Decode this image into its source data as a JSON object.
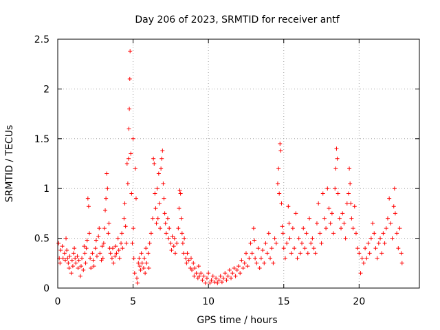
{
  "chart_data": {
    "type": "scatter",
    "title": "Day 206 of 2023, SRMTID for receiver antf",
    "xlabel": "GPS time / hours",
    "ylabel": "SRMTID / TECUs",
    "xlim": [
      0,
      24
    ],
    "ylim": [
      0,
      2.5
    ],
    "xticks": [
      0,
      5,
      10,
      15,
      20
    ],
    "yticks": [
      0,
      0.5,
      1,
      1.5,
      2,
      2.5
    ],
    "xtick_labels": [
      "0",
      "5",
      "10",
      "15",
      "20"
    ],
    "ytick_labels": [
      "0",
      "0.5",
      "1",
      "1.5",
      "2",
      "2.5"
    ],
    "grid": true,
    "marker": "plus",
    "series": [
      {
        "name": "SRMTID",
        "color": "#ff0000",
        "points": [
          [
            0.05,
            0.45
          ],
          [
            0.1,
            0.3
          ],
          [
            0.15,
            0.25
          ],
          [
            0.2,
            0.38
          ],
          [
            0.3,
            0.42
          ],
          [
            0.35,
            0.3
          ],
          [
            0.45,
            0.35
          ],
          [
            0.5,
            0.28
          ],
          [
            0.55,
            0.5
          ],
          [
            0.6,
            0.38
          ],
          [
            0.65,
            0.3
          ],
          [
            0.7,
            0.25
          ],
          [
            0.75,
            0.2
          ],
          [
            0.8,
            0.32
          ],
          [
            0.9,
            0.15
          ],
          [
            0.95,
            0.28
          ],
          [
            1.0,
            0.22
          ],
          [
            1.05,
            0.35
          ],
          [
            1.1,
            0.4
          ],
          [
            1.15,
            0.3
          ],
          [
            1.2,
            0.25
          ],
          [
            1.3,
            0.32
          ],
          [
            1.35,
            0.2
          ],
          [
            1.4,
            0.28
          ],
          [
            1.5,
            0.12
          ],
          [
            1.55,
            0.22
          ],
          [
            1.6,
            0.3
          ],
          [
            1.7,
            0.18
          ],
          [
            1.75,
            0.42
          ],
          [
            1.8,
            0.35
          ],
          [
            1.85,
            0.25
          ],
          [
            1.9,
            0.4
          ],
          [
            1.95,
            0.48
          ],
          [
            2.0,
            0.9
          ],
          [
            2.05,
            0.82
          ],
          [
            2.1,
            0.55
          ],
          [
            2.15,
            0.3
          ],
          [
            2.2,
            0.2
          ],
          [
            2.3,
            0.35
          ],
          [
            2.35,
            0.28
          ],
          [
            2.4,
            0.22
          ],
          [
            2.5,
            0.4
          ],
          [
            2.55,
            0.48
          ],
          [
            2.6,
            0.32
          ],
          [
            2.7,
            0.52
          ],
          [
            2.75,
            0.6
          ],
          [
            2.8,
            0.35
          ],
          [
            2.9,
            0.28
          ],
          [
            2.95,
            0.42
          ],
          [
            3.0,
            0.3
          ],
          [
            3.05,
            0.45
          ],
          [
            3.1,
            0.6
          ],
          [
            3.15,
            0.78
          ],
          [
            3.2,
            0.9
          ],
          [
            3.25,
            1.15
          ],
          [
            3.3,
            1.0
          ],
          [
            3.35,
            0.55
          ],
          [
            3.4,
            0.65
          ],
          [
            3.45,
            0.4
          ],
          [
            3.5,
            0.35
          ],
          [
            3.6,
            0.3
          ],
          [
            3.65,
            0.4
          ],
          [
            3.7,
            0.25
          ],
          [
            3.8,
            0.32
          ],
          [
            3.85,
            0.42
          ],
          [
            3.9,
            0.35
          ],
          [
            4.0,
            0.5
          ],
          [
            4.05,
            0.38
          ],
          [
            4.1,
            0.3
          ],
          [
            4.2,
            0.45
          ],
          [
            4.25,
            0.55
          ],
          [
            4.3,
            0.4
          ],
          [
            4.4,
            0.7
          ],
          [
            4.45,
            0.85
          ],
          [
            4.5,
            0.62
          ],
          [
            4.55,
            0.45
          ],
          [
            4.6,
            1.25
          ],
          [
            4.65,
            1.05
          ],
          [
            4.7,
            1.3
          ],
          [
            4.72,
            1.6
          ],
          [
            4.75,
            1.8
          ],
          [
            4.78,
            2.1
          ],
          [
            4.8,
            2.38
          ],
          [
            4.85,
            1.35
          ],
          [
            4.9,
            0.95
          ],
          [
            4.95,
            0.45
          ],
          [
            5.0,
            1.5
          ],
          [
            5.02,
            0.6
          ],
          [
            5.05,
            0.3
          ],
          [
            5.1,
            0.15
          ],
          [
            5.15,
            1.2
          ],
          [
            5.2,
            0.9
          ],
          [
            5.25,
            0.1
          ],
          [
            5.3,
            0.05
          ],
          [
            5.35,
            0.25
          ],
          [
            5.4,
            0.3
          ],
          [
            5.45,
            0.22
          ],
          [
            5.5,
            0.18
          ],
          [
            5.55,
            0.35
          ],
          [
            5.6,
            0.25
          ],
          [
            5.7,
            0.2
          ],
          [
            5.75,
            0.3
          ],
          [
            5.8,
            0.15
          ],
          [
            5.85,
            0.4
          ],
          [
            5.9,
            0.25
          ],
          [
            6.0,
            0.35
          ],
          [
            6.05,
            0.2
          ],
          [
            6.1,
            0.45
          ],
          [
            6.2,
            0.55
          ],
          [
            6.3,
            0.7
          ],
          [
            6.35,
            1.3
          ],
          [
            6.4,
            1.25
          ],
          [
            6.45,
            0.95
          ],
          [
            6.5,
            0.8
          ],
          [
            6.55,
            0.65
          ],
          [
            6.6,
            1.0
          ],
          [
            6.65,
            0.7
          ],
          [
            6.7,
            1.15
          ],
          [
            6.75,
            0.85
          ],
          [
            6.8,
            0.6
          ],
          [
            6.85,
            1.2
          ],
          [
            6.9,
            1.3
          ],
          [
            6.95,
            1.38
          ],
          [
            7.0,
            1.05
          ],
          [
            7.05,
            0.9
          ],
          [
            7.1,
            0.75
          ],
          [
            7.15,
            0.65
          ],
          [
            7.2,
            0.55
          ],
          [
            7.3,
            0.7
          ],
          [
            7.35,
            0.5
          ],
          [
            7.4,
            0.6
          ],
          [
            7.5,
            0.45
          ],
          [
            7.55,
            0.38
          ],
          [
            7.6,
            0.52
          ],
          [
            7.7,
            0.42
          ],
          [
            7.75,
            0.5
          ],
          [
            7.8,
            0.35
          ],
          [
            7.9,
            0.45
          ],
          [
            8.0,
            0.6
          ],
          [
            8.05,
            0.8
          ],
          [
            8.1,
            0.98
          ],
          [
            8.15,
            0.95
          ],
          [
            8.2,
            0.7
          ],
          [
            8.25,
            0.55
          ],
          [
            8.3,
            0.45
          ],
          [
            8.35,
            0.35
          ],
          [
            8.4,
            0.5
          ],
          [
            8.5,
            0.3
          ],
          [
            8.55,
            0.25
          ],
          [
            8.6,
            0.35
          ],
          [
            8.7,
            0.28
          ],
          [
            8.8,
            0.2
          ],
          [
            8.85,
            0.3
          ],
          [
            8.9,
            0.18
          ],
          [
            9.0,
            0.25
          ],
          [
            9.05,
            0.12
          ],
          [
            9.1,
            0.2
          ],
          [
            9.2,
            0.15
          ],
          [
            9.3,
            0.1
          ],
          [
            9.35,
            0.22
          ],
          [
            9.4,
            0.12
          ],
          [
            9.5,
            0.15
          ],
          [
            9.6,
            0.08
          ],
          [
            9.7,
            0.12
          ],
          [
            9.8,
            0.05
          ],
          [
            9.9,
            0.1
          ],
          [
            10.0,
            0.15
          ],
          [
            10.1,
            0.05
          ],
          [
            10.2,
            0.08
          ],
          [
            10.3,
            0.12
          ],
          [
            10.4,
            0.06
          ],
          [
            10.5,
            0.1
          ],
          [
            10.6,
            0.05
          ],
          [
            10.7,
            0.08
          ],
          [
            10.8,
            0.12
          ],
          [
            10.9,
            0.06
          ],
          [
            11.0,
            0.1
          ],
          [
            11.1,
            0.15
          ],
          [
            11.2,
            0.08
          ],
          [
            11.3,
            0.12
          ],
          [
            11.4,
            0.18
          ],
          [
            11.5,
            0.1
          ],
          [
            11.6,
            0.15
          ],
          [
            11.7,
            0.2
          ],
          [
            11.8,
            0.12
          ],
          [
            11.9,
            0.18
          ],
          [
            12.0,
            0.22
          ],
          [
            12.1,
            0.15
          ],
          [
            12.2,
            0.28
          ],
          [
            12.3,
            0.2
          ],
          [
            12.4,
            0.25
          ],
          [
            12.5,
            0.35
          ],
          [
            12.6,
            0.22
          ],
          [
            12.7,
            0.3
          ],
          [
            12.8,
            0.45
          ],
          [
            12.9,
            0.35
          ],
          [
            13.0,
            0.6
          ],
          [
            13.05,
            0.48
          ],
          [
            13.1,
            0.3
          ],
          [
            13.2,
            0.25
          ],
          [
            13.3,
            0.4
          ],
          [
            13.4,
            0.2
          ],
          [
            13.5,
            0.3
          ],
          [
            13.6,
            0.38
          ],
          [
            13.7,
            0.25
          ],
          [
            13.8,
            0.45
          ],
          [
            13.9,
            0.35
          ],
          [
            14.0,
            0.55
          ],
          [
            14.1,
            0.3
          ],
          [
            14.2,
            0.4
          ],
          [
            14.3,
            0.25
          ],
          [
            14.4,
            0.5
          ],
          [
            14.5,
            0.45
          ],
          [
            14.6,
            1.05
          ],
          [
            14.65,
            1.2
          ],
          [
            14.7,
            0.95
          ],
          [
            14.75,
            1.45
          ],
          [
            14.8,
            1.38
          ],
          [
            14.85,
            0.85
          ],
          [
            14.9,
            0.62
          ],
          [
            14.95,
            0.55
          ],
          [
            15.0,
            0.4
          ],
          [
            15.1,
            0.3
          ],
          [
            15.2,
            0.45
          ],
          [
            15.3,
            0.82
          ],
          [
            15.35,
            0.65
          ],
          [
            15.4,
            0.5
          ],
          [
            15.5,
            0.35
          ],
          [
            15.6,
            0.6
          ],
          [
            15.7,
            0.4
          ],
          [
            15.8,
            0.75
          ],
          [
            15.9,
            0.3
          ],
          [
            16.0,
            0.5
          ],
          [
            16.1,
            0.35
          ],
          [
            16.2,
            0.45
          ],
          [
            16.3,
            0.6
          ],
          [
            16.4,
            0.4
          ],
          [
            16.5,
            0.55
          ],
          [
            16.6,
            0.35
          ],
          [
            16.7,
            0.7
          ],
          [
            16.8,
            0.45
          ],
          [
            16.9,
            0.5
          ],
          [
            17.0,
            0.4
          ],
          [
            17.1,
            0.35
          ],
          [
            17.2,
            0.65
          ],
          [
            17.3,
            0.85
          ],
          [
            17.4,
            0.55
          ],
          [
            17.5,
            0.45
          ],
          [
            17.6,
            0.95
          ],
          [
            17.7,
            0.7
          ],
          [
            17.8,
            0.6
          ],
          [
            17.9,
            1.0
          ],
          [
            18.0,
            0.8
          ],
          [
            18.1,
            0.65
          ],
          [
            18.2,
            0.75
          ],
          [
            18.3,
            0.55
          ],
          [
            18.4,
            1.0
          ],
          [
            18.45,
            1.2
          ],
          [
            18.5,
            1.4
          ],
          [
            18.55,
            1.3
          ],
          [
            18.6,
            0.95
          ],
          [
            18.7,
            0.7
          ],
          [
            18.8,
            0.6
          ],
          [
            18.9,
            0.75
          ],
          [
            19.0,
            0.65
          ],
          [
            19.1,
            0.5
          ],
          [
            19.2,
            0.85
          ],
          [
            19.3,
            0.95
          ],
          [
            19.35,
            1.2
          ],
          [
            19.4,
            1.05
          ],
          [
            19.45,
            0.85
          ],
          [
            19.5,
            0.7
          ],
          [
            19.6,
            0.6
          ],
          [
            19.7,
            0.82
          ],
          [
            19.8,
            0.55
          ],
          [
            19.9,
            0.4
          ],
          [
            20.0,
            0.35
          ],
          [
            20.1,
            0.15
          ],
          [
            20.2,
            0.3
          ],
          [
            20.3,
            0.25
          ],
          [
            20.4,
            0.4
          ],
          [
            20.5,
            0.3
          ],
          [
            20.6,
            0.45
          ],
          [
            20.7,
            0.35
          ],
          [
            20.8,
            0.5
          ],
          [
            20.9,
            0.65
          ],
          [
            21.0,
            0.55
          ],
          [
            21.1,
            0.4
          ],
          [
            21.2,
            0.3
          ],
          [
            21.3,
            0.45
          ],
          [
            21.4,
            0.5
          ],
          [
            21.5,
            0.35
          ],
          [
            21.6,
            0.55
          ],
          [
            21.7,
            0.45
          ],
          [
            21.8,
            0.6
          ],
          [
            21.9,
            0.7
          ],
          [
            22.0,
            0.9
          ],
          [
            22.1,
            0.65
          ],
          [
            22.2,
            0.5
          ],
          [
            22.3,
            0.82
          ],
          [
            22.35,
            1.0
          ],
          [
            22.4,
            0.75
          ],
          [
            22.5,
            0.55
          ],
          [
            22.6,
            0.4
          ],
          [
            22.7,
            0.6
          ],
          [
            22.8,
            0.35
          ],
          [
            22.85,
            0.25
          ]
        ]
      }
    ]
  }
}
